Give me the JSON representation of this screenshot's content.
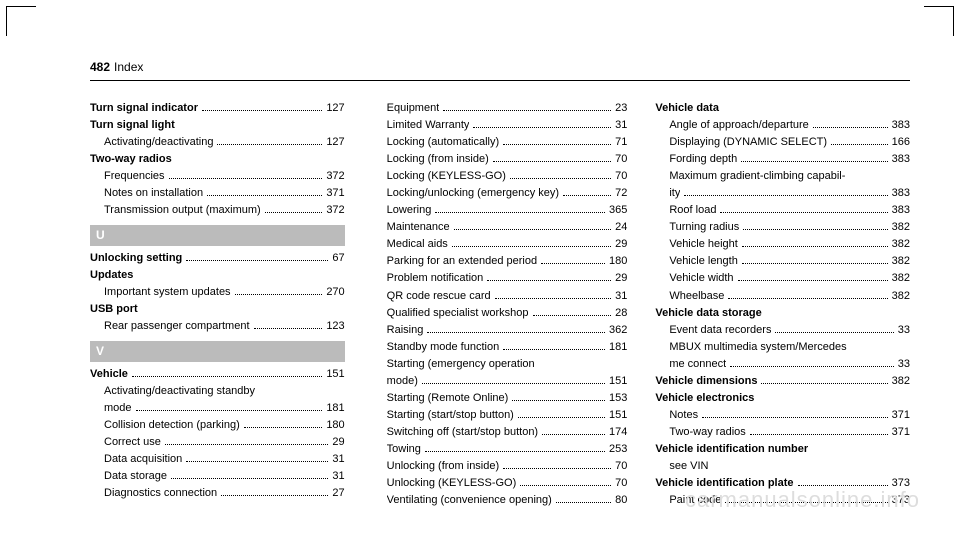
{
  "header": {
    "page_number": "482",
    "section": "Index"
  },
  "watermark": "carmanualsonline.info",
  "columns": [
    [
      {
        "type": "entry",
        "bold": true,
        "label": "Turn signal indicator",
        "page": "127"
      },
      {
        "type": "heading",
        "label": "Turn signal light"
      },
      {
        "type": "entry",
        "sub": true,
        "label": "Activating/deactivating",
        "page": "127"
      },
      {
        "type": "heading",
        "label": "Two-way radios"
      },
      {
        "type": "entry",
        "sub": true,
        "label": "Frequencies",
        "page": "372"
      },
      {
        "type": "entry",
        "sub": true,
        "label": "Notes on installation",
        "page": "371"
      },
      {
        "type": "entry",
        "sub": true,
        "label": "Transmission output (maximum)",
        "page": "372"
      },
      {
        "type": "letter",
        "label": "U"
      },
      {
        "type": "entry",
        "bold": true,
        "label": "Unlocking setting",
        "page": "67"
      },
      {
        "type": "heading",
        "label": "Updates"
      },
      {
        "type": "entry",
        "sub": true,
        "label": "Important system updates",
        "page": "270"
      },
      {
        "type": "heading",
        "label": "USB port"
      },
      {
        "type": "entry",
        "sub": true,
        "label": "Rear passenger compartment",
        "page": "123"
      },
      {
        "type": "letter",
        "label": "V"
      },
      {
        "type": "entry",
        "bold": true,
        "label": "Vehicle",
        "page": "151"
      },
      {
        "type": "wrap",
        "sub": true,
        "label": "Activating/deactivating standby"
      },
      {
        "type": "entry",
        "sub": true,
        "label": "mode",
        "page": "181"
      },
      {
        "type": "entry",
        "sub": true,
        "label": "Collision detection (parking)",
        "page": "180"
      },
      {
        "type": "entry",
        "sub": true,
        "label": "Correct use",
        "page": "29"
      },
      {
        "type": "entry",
        "sub": true,
        "label": "Data acquisition",
        "page": "31"
      },
      {
        "type": "entry",
        "sub": true,
        "label": "Data storage",
        "page": "31"
      },
      {
        "type": "entry",
        "sub": true,
        "label": "Diagnostics connection",
        "page": "27"
      }
    ],
    [
      {
        "type": "entry",
        "sub": true,
        "label": "Equipment",
        "page": "23"
      },
      {
        "type": "entry",
        "sub": true,
        "label": "Limited Warranty",
        "page": "31"
      },
      {
        "type": "entry",
        "sub": true,
        "label": "Locking (automatically)",
        "page": "71"
      },
      {
        "type": "entry",
        "sub": true,
        "label": "Locking (from inside)",
        "page": "70"
      },
      {
        "type": "entry",
        "sub": true,
        "label": "Locking (KEYLESS-GO)",
        "page": "70"
      },
      {
        "type": "entry",
        "sub": true,
        "label": "Locking/unlocking (emergency key)",
        "page": "72"
      },
      {
        "type": "entry",
        "sub": true,
        "label": "Lowering",
        "page": "365"
      },
      {
        "type": "entry",
        "sub": true,
        "label": "Maintenance",
        "page": "24"
      },
      {
        "type": "entry",
        "sub": true,
        "label": "Medical aids",
        "page": "29"
      },
      {
        "type": "entry",
        "sub": true,
        "label": "Parking for an extended period",
        "page": "180"
      },
      {
        "type": "entry",
        "sub": true,
        "label": "Problem notification",
        "page": "29"
      },
      {
        "type": "entry",
        "sub": true,
        "label": "QR code rescue card",
        "page": "31"
      },
      {
        "type": "entry",
        "sub": true,
        "label": "Qualified specialist workshop",
        "page": "28"
      },
      {
        "type": "entry",
        "sub": true,
        "label": "Raising",
        "page": "362"
      },
      {
        "type": "entry",
        "sub": true,
        "label": "Standby mode function",
        "page": "181"
      },
      {
        "type": "wrap",
        "sub": true,
        "label": "Starting (emergency operation"
      },
      {
        "type": "entry",
        "sub": true,
        "label": "mode)",
        "page": "151"
      },
      {
        "type": "entry",
        "sub": true,
        "label": "Starting (Remote Online)",
        "page": "153"
      },
      {
        "type": "entry",
        "sub": true,
        "label": "Starting (start/stop button)",
        "page": "151"
      },
      {
        "type": "entry",
        "sub": true,
        "label": "Switching off (start/stop button)",
        "page": "174"
      },
      {
        "type": "entry",
        "sub": true,
        "label": "Towing",
        "page": "253"
      },
      {
        "type": "entry",
        "sub": true,
        "label": "Unlocking (from inside)",
        "page": "70"
      },
      {
        "type": "entry",
        "sub": true,
        "label": "Unlocking (KEYLESS-GO)",
        "page": "70"
      },
      {
        "type": "entry",
        "sub": true,
        "label": "Ventilating (convenience opening)",
        "page": "80"
      }
    ],
    [
      {
        "type": "heading",
        "label": "Vehicle data"
      },
      {
        "type": "entry",
        "sub": true,
        "label": "Angle of approach/departure",
        "page": "383"
      },
      {
        "type": "entry",
        "sub": true,
        "label": "Displaying (DYNAMIC SELECT)",
        "page": "166"
      },
      {
        "type": "entry",
        "sub": true,
        "label": "Fording depth",
        "page": "383"
      },
      {
        "type": "wrap",
        "sub": true,
        "label": "Maximum gradient-climbing capabil-"
      },
      {
        "type": "entry",
        "sub": true,
        "label": "ity",
        "page": "383"
      },
      {
        "type": "entry",
        "sub": true,
        "label": "Roof load",
        "page": "383"
      },
      {
        "type": "entry",
        "sub": true,
        "label": "Turning radius",
        "page": "382"
      },
      {
        "type": "entry",
        "sub": true,
        "label": "Vehicle height",
        "page": "382"
      },
      {
        "type": "entry",
        "sub": true,
        "label": "Vehicle length",
        "page": "382"
      },
      {
        "type": "entry",
        "sub": true,
        "label": "Vehicle width",
        "page": "382"
      },
      {
        "type": "entry",
        "sub": true,
        "label": "Wheelbase",
        "page": "382"
      },
      {
        "type": "heading",
        "label": "Vehicle data storage"
      },
      {
        "type": "entry",
        "sub": true,
        "label": "Event data recorders",
        "page": "33"
      },
      {
        "type": "wrap",
        "sub": true,
        "label": "MBUX multimedia system/Mercedes"
      },
      {
        "type": "entry",
        "sub": true,
        "label": "me connect",
        "page": "33"
      },
      {
        "type": "entry",
        "bold": true,
        "label": "Vehicle dimensions",
        "page": "382"
      },
      {
        "type": "heading",
        "label": "Vehicle electronics"
      },
      {
        "type": "entry",
        "sub": true,
        "label": "Notes",
        "page": "371"
      },
      {
        "type": "entry",
        "sub": true,
        "label": "Two-way radios",
        "page": "371"
      },
      {
        "type": "heading",
        "label": "Vehicle identification number"
      },
      {
        "type": "text",
        "sub": true,
        "label": "see VIN"
      },
      {
        "type": "entry",
        "bold": true,
        "label": "Vehicle identification plate",
        "page": "373"
      },
      {
        "type": "entry",
        "sub": true,
        "label": "Paint code",
        "page": "373"
      }
    ]
  ]
}
